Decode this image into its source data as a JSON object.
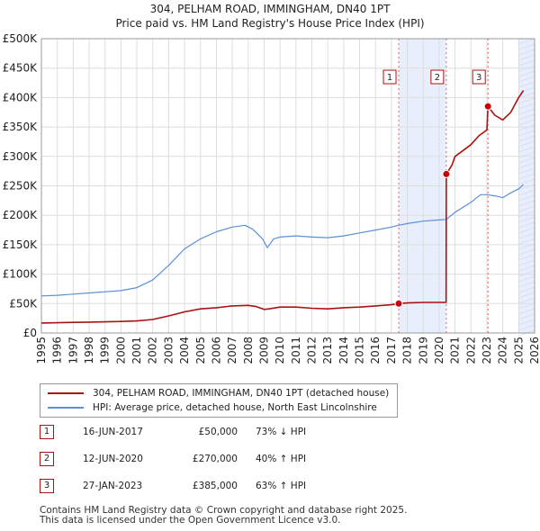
{
  "chart_data": {
    "type": "line",
    "title": "304, PELHAM ROAD, IMMINGHAM, DN40 1PT",
    "subtitle": "Price paid vs. HM Land Registry's House Price Index (HPI)",
    "xlabel": "",
    "ylabel": "",
    "xlim": [
      1995,
      2026
    ],
    "ylim": [
      0,
      500000
    ],
    "yticks": [
      0,
      50000,
      100000,
      150000,
      200000,
      250000,
      300000,
      350000,
      400000,
      450000,
      500000
    ],
    "ytick_labels": [
      "£0",
      "£50K",
      "£100K",
      "£150K",
      "£200K",
      "£250K",
      "£300K",
      "£350K",
      "£400K",
      "£450K",
      "£500K"
    ],
    "xticks": [
      1995,
      1996,
      1997,
      1998,
      1999,
      2000,
      2001,
      2002,
      2003,
      2004,
      2005,
      2006,
      2007,
      2008,
      2009,
      2010,
      2011,
      2012,
      2013,
      2014,
      2015,
      2016,
      2017,
      2018,
      2019,
      2020,
      2021,
      2022,
      2023,
      2024,
      2025,
      2026
    ],
    "xtick_labels": [
      "1995",
      "1996",
      "1997",
      "1998",
      "1999",
      "2000",
      "2001",
      "2002",
      "2003",
      "2004",
      "2005",
      "2006",
      "2007",
      "2008",
      "2009",
      "2010",
      "2011",
      "2012",
      "2013",
      "2014",
      "2015",
      "2016",
      "2017",
      "2018",
      "2019",
      "2020",
      "2021",
      "2022",
      "2023",
      "2024",
      "2025",
      "2026"
    ],
    "shaded_regions": [
      [
        2017.46,
        2020.45
      ],
      [
        2025.0,
        2026.0
      ]
    ],
    "series": [
      {
        "name": "304, PELHAM ROAD, IMMINGHAM, DN40 1PT (detached house)",
        "color": "#aa1111",
        "x": [
          1995.0,
          1996.0,
          1997.0,
          1998.0,
          1999.0,
          2000.0,
          2001.0,
          2002.0,
          2003.0,
          2004.0,
          2005.0,
          2006.0,
          2007.0,
          2008.0,
          2008.5,
          2009.0,
          2009.3,
          2010.0,
          2011.0,
          2012.0,
          2013.0,
          2014.0,
          2015.0,
          2016.0,
          2017.0,
          2017.46,
          2018.0,
          2019.0,
          2020.0,
          2020.44,
          2020.45,
          2020.8,
          2021.0,
          2021.5,
          2022.0,
          2022.5,
          2023.0,
          2023.07,
          2023.5,
          2024.0,
          2024.5,
          2025.0,
          2025.3
        ],
        "y": [
          17000,
          17500,
          18000,
          18500,
          19000,
          19500,
          20500,
          23000,
          29000,
          36000,
          41000,
          43000,
          46000,
          47000,
          45000,
          40000,
          41000,
          44000,
          44000,
          42000,
          41000,
          43000,
          44000,
          46000,
          48000,
          50000,
          51000,
          52000,
          52000,
          52000,
          270000,
          285000,
          300000,
          310000,
          320000,
          335000,
          345000,
          385000,
          370000,
          362000,
          375000,
          400000,
          412000
        ]
      },
      {
        "name": "HPI: Average price, detached house, North East Lincolnshire",
        "color": "#5b8fd6",
        "x": [
          1995.0,
          1996.0,
          1997.0,
          1998.0,
          1999.0,
          2000.0,
          2001.0,
          2002.0,
          2003.0,
          2004.0,
          2005.0,
          2006.0,
          2007.0,
          2007.8,
          2008.3,
          2008.9,
          2009.2,
          2009.6,
          2010.0,
          2011.0,
          2012.0,
          2013.0,
          2014.0,
          2015.0,
          2016.0,
          2017.0,
          2017.46,
          2018.0,
          2019.0,
          2020.0,
          2020.45,
          2021.0,
          2022.0,
          2022.6,
          2023.0,
          2023.5,
          2024.0,
          2024.5,
          2025.0,
          2025.3
        ],
        "y": [
          63000,
          64000,
          66000,
          68000,
          70000,
          72000,
          77000,
          90000,
          115000,
          143000,
          160000,
          172000,
          180000,
          183000,
          176000,
          160000,
          145000,
          160000,
          163000,
          165000,
          163000,
          162000,
          165000,
          170000,
          175000,
          180000,
          183000,
          186000,
          190000,
          192000,
          193000,
          205000,
          222000,
          235000,
          235000,
          233000,
          230000,
          238000,
          245000,
          252000
        ]
      }
    ],
    "sale_markers": [
      {
        "label": "1",
        "x": 2017.46,
        "y": 50000
      },
      {
        "label": "2",
        "x": 2020.45,
        "y": 270000
      },
      {
        "label": "3",
        "x": 2023.07,
        "y": 385000
      }
    ]
  },
  "legend": {
    "property_label": "304, PELHAM ROAD, IMMINGHAM, DN40 1PT (detached house)",
    "hpi_label": "HPI: Average price, detached house, North East Lincolnshire"
  },
  "sales": [
    {
      "num": "1",
      "date": "16-JUN-2017",
      "price": "£50,000",
      "hpi": "73% ↓ HPI"
    },
    {
      "num": "2",
      "date": "12-JUN-2020",
      "price": "£270,000",
      "hpi": "40% ↑ HPI"
    },
    {
      "num": "3",
      "date": "27-JAN-2023",
      "price": "£385,000",
      "hpi": "63% ↑ HPI"
    }
  ],
  "footer": {
    "line1": "Contains HM Land Registry data © Crown copyright and database right 2025.",
    "line2": "This data is licensed under the Open Government Licence v3.0."
  },
  "colors": {
    "property": "#aa1111",
    "hpi": "#5b8fd6",
    "shade": "#e8eefc",
    "grid": "#dddddd"
  }
}
